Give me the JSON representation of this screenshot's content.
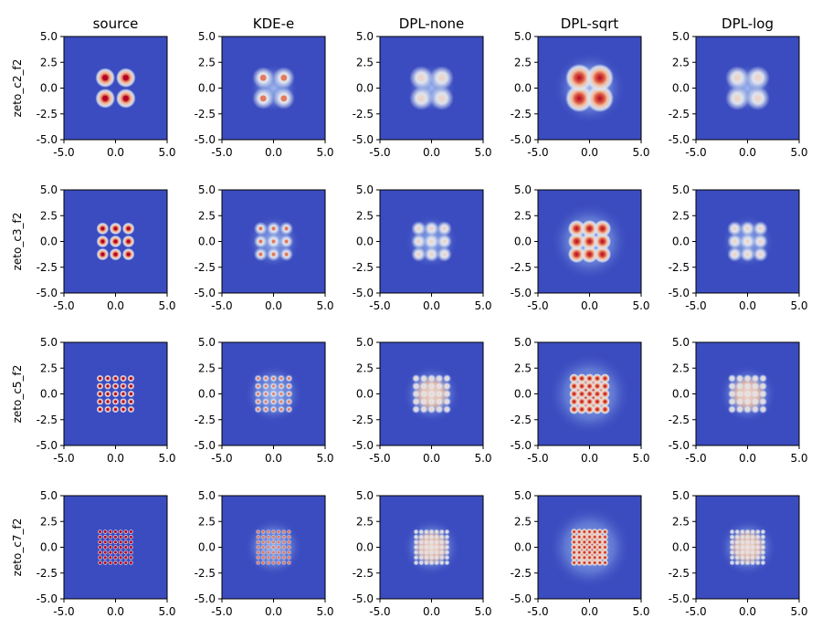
{
  "figure": {
    "columns": [
      "source",
      "KDE-e",
      "DPL-none",
      "DPL-sqrt",
      "DPL-log"
    ],
    "rows": [
      "zeto_c2_f2",
      "zeto_c3_f2",
      "zeto_c5_f2",
      "zeto_c7_f2"
    ]
  },
  "chart_data": {
    "type": "heatmap",
    "colormap": "coolwarm",
    "xlim": [
      -5.0,
      5.0
    ],
    "ylim": [
      -5.0,
      5.0
    ],
    "xticks": [
      "-5.0",
      "0.0",
      "5.0"
    ],
    "yticks": [
      "5.0",
      "2.5",
      "0.0",
      "-2.5",
      "-5.0"
    ],
    "grid": false,
    "panels": [
      {
        "row": "zeto_c2_f2",
        "column": "source",
        "mode_grid": 2,
        "mode_centers": [
          -1.0,
          1.0
        ]
      },
      {
        "row": "zeto_c2_f2",
        "column": "KDE-e",
        "mode_grid": 2,
        "mode_centers": [
          -1.0,
          1.0
        ]
      },
      {
        "row": "zeto_c2_f2",
        "column": "DPL-none",
        "mode_grid": 2,
        "mode_centers": [
          -1.0,
          1.0
        ]
      },
      {
        "row": "zeto_c2_f2",
        "column": "DPL-sqrt",
        "mode_grid": 2,
        "mode_centers": [
          -1.0,
          1.0
        ]
      },
      {
        "row": "zeto_c2_f2",
        "column": "DPL-log",
        "mode_grid": 2,
        "mode_centers": [
          -1.0,
          1.0
        ]
      },
      {
        "row": "zeto_c3_f2",
        "column": "source",
        "mode_grid": 3,
        "mode_centers": [
          -1.25,
          0.0,
          1.25
        ]
      },
      {
        "row": "zeto_c3_f2",
        "column": "KDE-e",
        "mode_grid": 3,
        "mode_centers": [
          -1.25,
          0.0,
          1.25
        ]
      },
      {
        "row": "zeto_c3_f2",
        "column": "DPL-none",
        "mode_grid": 3,
        "mode_centers": [
          -1.25,
          0.0,
          1.25
        ]
      },
      {
        "row": "zeto_c3_f2",
        "column": "DPL-sqrt",
        "mode_grid": 3,
        "mode_centers": [
          -1.25,
          0.0,
          1.25
        ]
      },
      {
        "row": "zeto_c3_f2",
        "column": "DPL-log",
        "mode_grid": 3,
        "mode_centers": [
          -1.25,
          0.0,
          1.25
        ]
      },
      {
        "row": "zeto_c5_f2",
        "column": "source",
        "mode_grid": 5,
        "mode_centers": [
          -1.5,
          -0.75,
          0.0,
          0.75,
          1.5
        ]
      },
      {
        "row": "zeto_c5_f2",
        "column": "KDE-e",
        "mode_grid": 5,
        "mode_centers": [
          -1.5,
          -0.75,
          0.0,
          0.75,
          1.5
        ]
      },
      {
        "row": "zeto_c5_f2",
        "column": "DPL-none",
        "mode_grid": 5,
        "mode_centers": [
          -1.5,
          -0.75,
          0.0,
          0.75,
          1.5
        ]
      },
      {
        "row": "zeto_c5_f2",
        "column": "DPL-sqrt",
        "mode_grid": 5,
        "mode_centers": [
          -1.5,
          -0.75,
          0.0,
          0.75,
          1.5
        ]
      },
      {
        "row": "zeto_c5_f2",
        "column": "DPL-log",
        "mode_grid": 5,
        "mode_centers": [
          -1.5,
          -0.75,
          0.0,
          0.75,
          1.5
        ]
      },
      {
        "row": "zeto_c7_f2",
        "column": "source",
        "mode_grid": 7,
        "mode_centers": [
          -1.5,
          -1.0,
          -0.5,
          0.0,
          0.5,
          1.0,
          1.5
        ]
      },
      {
        "row": "zeto_c7_f2",
        "column": "KDE-e",
        "mode_grid": 7,
        "mode_centers": [
          -1.5,
          -1.0,
          -0.5,
          0.0,
          0.5,
          1.0,
          1.5
        ]
      },
      {
        "row": "zeto_c7_f2",
        "column": "DPL-none",
        "mode_grid": 7,
        "mode_centers": [
          -1.5,
          -1.0,
          -0.5,
          0.0,
          0.5,
          1.0,
          1.5
        ]
      },
      {
        "row": "zeto_c7_f2",
        "column": "DPL-sqrt",
        "mode_grid": 7,
        "mode_centers": [
          -1.5,
          -1.0,
          -0.5,
          0.0,
          0.5,
          1.0,
          1.5
        ]
      },
      {
        "row": "zeto_c7_f2",
        "column": "DPL-log",
        "mode_grid": 7,
        "mode_centers": [
          -1.5,
          -1.0,
          -0.5,
          0.0,
          0.5,
          1.0,
          1.5
        ]
      }
    ]
  }
}
